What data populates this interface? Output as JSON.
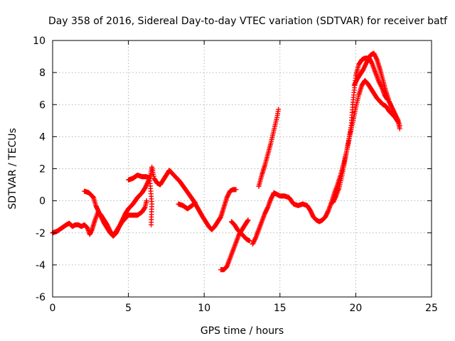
{
  "chart_data": {
    "type": "scatter",
    "title": "Day 358 of 2016, Sidereal Day-to-day VTEC variation (SDTVAR) for receiver batf",
    "xlabel": "GPS time / hours",
    "ylabel": "SDTVAR / TECUs",
    "xlim": [
      0,
      25
    ],
    "ylim": [
      -6,
      10
    ],
    "xticks": [
      0,
      5,
      10,
      15,
      20,
      25
    ],
    "yticks": [
      -6,
      -4,
      -2,
      0,
      2,
      4,
      6,
      8,
      10
    ],
    "grid": true,
    "marker": "+",
    "color": "#ff0000",
    "series": [
      {
        "segments": [
          [
            [
              0.0,
              -2.0
            ],
            [
              0.3,
              -1.9
            ],
            [
              0.6,
              -1.7
            ],
            [
              0.9,
              -1.5
            ],
            [
              1.1,
              -1.4
            ],
            [
              1.3,
              -1.6
            ],
            [
              1.5,
              -1.5
            ],
            [
              1.7,
              -1.5
            ],
            [
              1.9,
              -1.6
            ],
            [
              2.1,
              -1.5
            ],
            [
              2.3,
              -1.7
            ],
            [
              2.45,
              -2.1
            ],
            [
              2.6,
              -1.8
            ],
            [
              2.8,
              -1.2
            ],
            [
              3.0,
              -0.7
            ],
            [
              3.2,
              -0.9
            ],
            [
              3.4,
              -1.2
            ],
            [
              3.6,
              -1.5
            ],
            [
              3.8,
              -1.9
            ],
            [
              4.0,
              -2.2
            ],
            [
              4.2,
              -2.0
            ],
            [
              4.4,
              -1.6
            ],
            [
              4.6,
              -1.2
            ],
            [
              4.8,
              -0.8
            ],
            [
              5.0,
              -0.5
            ],
            [
              5.3,
              -0.2
            ],
            [
              5.6,
              0.2
            ],
            [
              5.9,
              0.5
            ],
            [
              6.1,
              0.8
            ],
            [
              6.3,
              1.2
            ],
            [
              6.45,
              1.6
            ],
            [
              6.55,
              2.1
            ],
            [
              6.6,
              1.9
            ],
            [
              6.7,
              1.4
            ],
            [
              6.9,
              1.1
            ],
            [
              7.1,
              1.0
            ],
            [
              7.3,
              1.3
            ],
            [
              7.5,
              1.6
            ],
            [
              7.7,
              1.9
            ],
            [
              7.9,
              1.7
            ],
            [
              8.1,
              1.5
            ],
            [
              8.4,
              1.2
            ],
            [
              8.7,
              0.8
            ],
            [
              9.0,
              0.4
            ],
            [
              9.3,
              0.0
            ],
            [
              9.6,
              -0.5
            ],
            [
              9.9,
              -1.0
            ],
            [
              10.1,
              -1.3
            ],
            [
              10.3,
              -1.6
            ],
            [
              10.5,
              -1.8
            ],
            [
              10.7,
              -1.6
            ],
            [
              10.9,
              -1.3
            ],
            [
              11.1,
              -1.0
            ],
            [
              11.3,
              -0.4
            ],
            [
              11.5,
              0.2
            ],
            [
              11.7,
              0.6
            ],
            [
              11.9,
              0.7
            ],
            [
              12.1,
              0.7
            ]
          ],
          [
            [
              2.1,
              0.6
            ],
            [
              2.4,
              0.5
            ],
            [
              2.7,
              0.2
            ],
            [
              2.85,
              -0.3
            ],
            [
              3.0,
              -0.6
            ],
            [
              3.2,
              -1.0
            ],
            [
              3.4,
              -1.4
            ],
            [
              3.6,
              -1.7
            ],
            [
              3.8,
              -2.0
            ],
            [
              4.0,
              -2.2
            ],
            [
              4.2,
              -1.9
            ],
            [
              4.4,
              -1.6
            ],
            [
              4.6,
              -1.3
            ],
            [
              4.8,
              -1.1
            ],
            [
              5.0,
              -0.9
            ],
            [
              5.3,
              -0.9
            ],
            [
              5.6,
              -0.9
            ],
            [
              5.9,
              -0.7
            ],
            [
              6.1,
              -0.4
            ],
            [
              6.2,
              0.0
            ]
          ],
          [
            [
              5.0,
              1.3
            ],
            [
              5.3,
              1.4
            ],
            [
              5.6,
              1.6
            ],
            [
              5.9,
              1.5
            ],
            [
              6.2,
              1.5
            ],
            [
              6.4,
              1.4
            ],
            [
              6.55,
              -0.2
            ],
            [
              6.5,
              -1.5
            ]
          ],
          [
            [
              8.3,
              -0.2
            ],
            [
              8.6,
              -0.3
            ],
            [
              8.9,
              -0.5
            ],
            [
              9.2,
              -0.3
            ],
            [
              9.4,
              -0.1
            ]
          ],
          [
            [
              11.1,
              -4.3
            ],
            [
              11.3,
              -4.3
            ],
            [
              11.5,
              -4.1
            ],
            [
              11.7,
              -3.6
            ],
            [
              11.9,
              -3.1
            ],
            [
              12.1,
              -2.6
            ],
            [
              12.3,
              -2.1
            ],
            [
              12.5,
              -1.8
            ],
            [
              12.7,
              -1.5
            ],
            [
              12.9,
              -1.2
            ]
          ],
          [
            [
              11.8,
              -1.3
            ],
            [
              12.0,
              -1.5
            ],
            [
              12.2,
              -1.8
            ],
            [
              12.4,
              -2.0
            ],
            [
              12.6,
              -2.2
            ],
            [
              12.8,
              -2.4
            ],
            [
              13.0,
              -2.5
            ]
          ],
          [
            [
              13.2,
              -2.7
            ],
            [
              13.4,
              -2.3
            ],
            [
              13.6,
              -1.8
            ],
            [
              13.8,
              -1.3
            ],
            [
              14.0,
              -0.8
            ],
            [
              14.2,
              -0.4
            ],
            [
              14.4,
              0.1
            ],
            [
              14.6,
              0.5
            ],
            [
              14.8,
              0.4
            ],
            [
              15.0,
              0.3
            ],
            [
              15.3,
              0.3
            ],
            [
              15.6,
              0.2
            ],
            [
              15.9,
              -0.2
            ],
            [
              16.2,
              -0.3
            ],
            [
              16.5,
              -0.2
            ],
            [
              16.8,
              -0.3
            ],
            [
              17.0,
              -0.6
            ],
            [
              17.2,
              -1.0
            ],
            [
              17.4,
              -1.2
            ],
            [
              17.6,
              -1.3
            ],
            [
              17.8,
              -1.2
            ],
            [
              18.0,
              -1.0
            ],
            [
              18.2,
              -0.6
            ],
            [
              18.4,
              -0.1
            ],
            [
              18.6,
              0.5
            ],
            [
              18.8,
              1.0
            ],
            [
              19.0,
              1.6
            ],
            [
              19.2,
              2.3
            ],
            [
              19.4,
              3.1
            ],
            [
              19.6,
              4.0
            ],
            [
              19.8,
              4.9
            ],
            [
              20.0,
              5.8
            ],
            [
              20.2,
              6.6
            ],
            [
              20.4,
              7.2
            ],
            [
              20.6,
              7.5
            ],
            [
              20.8,
              7.3
            ],
            [
              21.0,
              7.0
            ],
            [
              21.2,
              6.7
            ],
            [
              21.4,
              6.4
            ],
            [
              21.6,
              6.2
            ],
            [
              21.8,
              6.0
            ],
            [
              22.0,
              5.9
            ],
            [
              22.2,
              5.6
            ],
            [
              22.4,
              5.4
            ],
            [
              22.6,
              5.2
            ],
            [
              22.8,
              4.9
            ],
            [
              22.9,
              4.5
            ]
          ],
          [
            [
              13.6,
              0.9
            ],
            [
              13.8,
              1.6
            ],
            [
              14.0,
              2.2
            ],
            [
              14.2,
              2.9
            ],
            [
              14.4,
              3.6
            ],
            [
              14.6,
              4.4
            ],
            [
              14.8,
              5.2
            ],
            [
              14.9,
              5.7
            ]
          ],
          [
            [
              18.5,
              -0.1
            ],
            [
              18.7,
              0.3
            ],
            [
              18.9,
              0.8
            ],
            [
              19.1,
              1.6
            ],
            [
              19.3,
              2.6
            ],
            [
              19.5,
              3.6
            ],
            [
              19.7,
              4.7
            ],
            [
              19.8,
              6.0
            ],
            [
              19.9,
              6.9
            ],
            [
              20.0,
              7.8
            ],
            [
              20.2,
              8.5
            ],
            [
              20.4,
              8.8
            ],
            [
              20.6,
              8.9
            ],
            [
              20.8,
              8.9
            ],
            [
              21.0,
              9.1
            ],
            [
              21.2,
              9.2
            ],
            [
              21.4,
              8.8
            ],
            [
              21.6,
              8.2
            ],
            [
              21.8,
              7.5
            ],
            [
              22.0,
              6.8
            ],
            [
              22.2,
              6.2
            ],
            [
              22.4,
              5.8
            ],
            [
              22.6,
              5.4
            ],
            [
              22.8,
              5.0
            ],
            [
              22.9,
              4.7
            ]
          ],
          [
            [
              19.9,
              7.2
            ],
            [
              20.1,
              7.6
            ],
            [
              20.3,
              7.9
            ],
            [
              20.5,
              8.2
            ],
            [
              20.7,
              8.6
            ],
            [
              20.9,
              8.9
            ],
            [
              21.1,
              8.5
            ],
            [
              21.3,
              8.0
            ],
            [
              21.5,
              7.5
            ],
            [
              21.7,
              7.1
            ],
            [
              21.9,
              6.6
            ],
            [
              22.1,
              6.3
            ]
          ]
        ]
      }
    ]
  }
}
